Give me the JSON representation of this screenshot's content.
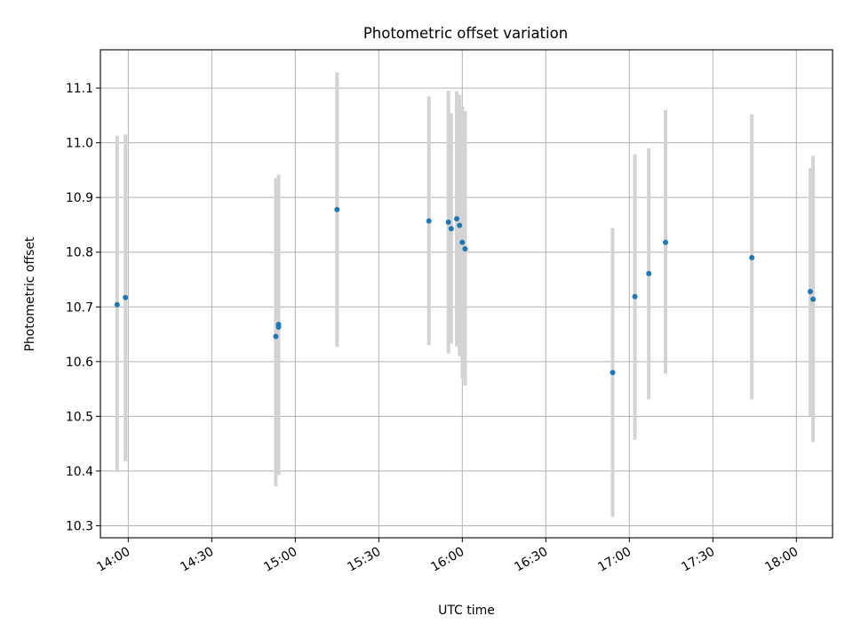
{
  "chart_data": {
    "type": "scatter",
    "title": "Photometric offset variation",
    "xlabel": "UTC time",
    "ylabel": "Photometric offset",
    "x_axis_kind": "time",
    "xlim": [
      "13:50",
      "18:13"
    ],
    "ylim": [
      10.278,
      11.17
    ],
    "x_ticks": [
      "14:00",
      "14:30",
      "15:00",
      "15:30",
      "16:00",
      "16:30",
      "17:00",
      "17:30",
      "18:00"
    ],
    "y_ticks": [
      "10.3",
      "10.4",
      "10.5",
      "10.6",
      "10.7",
      "10.8",
      "10.9",
      "11.0",
      "11.1"
    ],
    "grid": true,
    "colors": {
      "point": "#1f77b4",
      "errorbar": "#d3d3d3",
      "grid": "#b0b0b0"
    },
    "points": [
      {
        "x": "13:56",
        "y": 10.704,
        "err_low": 10.398,
        "err_high": 11.013
      },
      {
        "x": "13:59",
        "y": 10.717,
        "err_low": 10.418,
        "err_high": 11.015
      },
      {
        "x": "14:53",
        "y": 10.646,
        "err_low": 10.372,
        "err_high": 10.935
      },
      {
        "x": "14:54",
        "y": 10.663,
        "err_low": 10.393,
        "err_high": 10.941
      },
      {
        "x": "14:54",
        "y": 10.668,
        "err_low": 10.399,
        "err_high": 10.942
      },
      {
        "x": "15:15",
        "y": 10.878,
        "err_low": 10.627,
        "err_high": 11.129
      },
      {
        "x": "15:48",
        "y": 10.857,
        "err_low": 10.63,
        "err_high": 11.085
      },
      {
        "x": "15:55",
        "y": 10.855,
        "err_low": 10.615,
        "err_high": 11.095
      },
      {
        "x": "15:56",
        "y": 10.843,
        "err_low": 10.633,
        "err_high": 11.054
      },
      {
        "x": "15:58",
        "y": 10.861,
        "err_low": 10.628,
        "err_high": 11.094
      },
      {
        "x": "15:59",
        "y": 10.849,
        "err_low": 10.61,
        "err_high": 11.088
      },
      {
        "x": "16:00",
        "y": 10.818,
        "err_low": 10.57,
        "err_high": 11.066
      },
      {
        "x": "16:01",
        "y": 10.806,
        "err_low": 10.556,
        "err_high": 11.058
      },
      {
        "x": "16:54",
        "y": 10.58,
        "err_low": 10.316,
        "err_high": 10.844
      },
      {
        "x": "17:02",
        "y": 10.719,
        "err_low": 10.457,
        "err_high": 10.979
      },
      {
        "x": "17:07",
        "y": 10.761,
        "err_low": 10.531,
        "err_high": 10.99
      },
      {
        "x": "17:13",
        "y": 10.818,
        "err_low": 10.578,
        "err_high": 11.06
      },
      {
        "x": "17:44",
        "y": 10.79,
        "err_low": 10.531,
        "err_high": 11.052
      },
      {
        "x": "18:05",
        "y": 10.728,
        "err_low": 10.5,
        "err_high": 10.954
      },
      {
        "x": "18:06",
        "y": 10.714,
        "err_low": 10.453,
        "err_high": 10.976
      }
    ]
  }
}
